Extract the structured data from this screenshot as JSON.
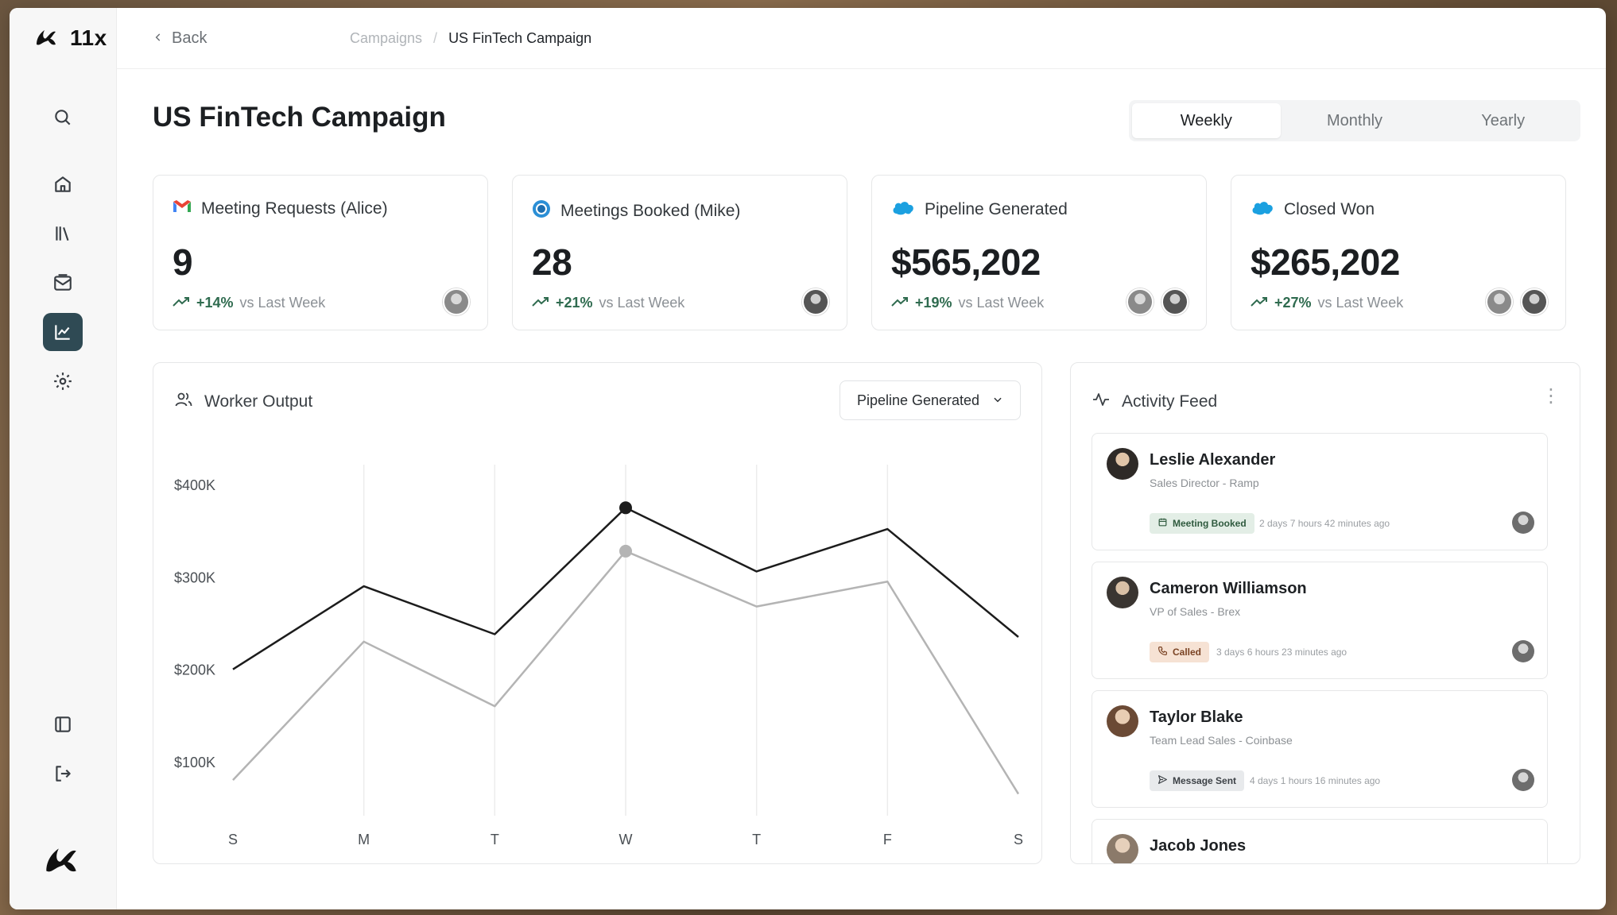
{
  "app": {
    "name": "11x"
  },
  "nav": {
    "back_label": "Back",
    "breadcrumbs": [
      {
        "label": "Campaigns"
      },
      {
        "label": "US FinTech Campaign"
      }
    ],
    "breadcrumb_separator": "/"
  },
  "page": {
    "title": "US FinTech Campaign"
  },
  "period_tabs": {
    "options": [
      "Weekly",
      "Monthly",
      "Yearly"
    ],
    "selected": "Weekly"
  },
  "stats": [
    {
      "icon": "gmail-icon",
      "label": "Meeting Requests (Alice)",
      "value": "9",
      "delta": "+14%",
      "compare": "vs Last Week"
    },
    {
      "icon": "meeting-icon",
      "label": "Meetings Booked (Mike)",
      "value": "28",
      "delta": "+21%",
      "compare": "vs Last Week"
    },
    {
      "icon": "salesforce-icon",
      "label": "Pipeline Generated",
      "value": "$565,202",
      "delta": "+19%",
      "compare": "vs Last Week"
    },
    {
      "icon": "salesforce-icon",
      "label": "Closed Won",
      "value": "$265,202",
      "delta": "+27%",
      "compare": "vs Last Week"
    }
  ],
  "worker_output": {
    "title": "Worker Output",
    "metric_select": "Pipeline Generated"
  },
  "chart_data": {
    "type": "line",
    "categories": [
      "S",
      "M",
      "T",
      "W",
      "T",
      "F",
      "S"
    ],
    "series": [
      {
        "color": "#1c1c1c",
        "values": [
          200000,
          290000,
          238000,
          375000,
          306000,
          352000,
          235000
        ]
      },
      {
        "color": "#b4b4b4",
        "values": [
          80000,
          230000,
          160000,
          328000,
          268000,
          295000,
          65000
        ]
      }
    ],
    "highlight_index": 3,
    "yticks": [
      "$400K",
      "$300K",
      "$200K",
      "$100K"
    ],
    "ytick_values": [
      400000,
      300000,
      200000,
      100000
    ],
    "ylim": [
      50000,
      420000
    ],
    "grid": "vertical"
  },
  "activity_feed": {
    "title": "Activity Feed",
    "items": [
      {
        "name": "Leslie Alexander",
        "role": "Sales Director - Ramp",
        "action": "Meeting Booked",
        "time": "2 days 7 hours 42 minutes ago",
        "tag_style": "green"
      },
      {
        "name": "Cameron Williamson",
        "role": "VP of Sales - Brex",
        "action": "Called",
        "time": "3 days 6 hours 23 minutes ago",
        "tag_style": "orange"
      },
      {
        "name": "Taylor Blake",
        "role": "Team Lead Sales - Coinbase",
        "action": "Message Sent",
        "time": "4 days 1 hours 16 minutes ago",
        "tag_style": "gray"
      },
      {
        "name": "Jacob Jones",
        "role": "",
        "action": "",
        "time": "",
        "tag_style": ""
      }
    ]
  }
}
